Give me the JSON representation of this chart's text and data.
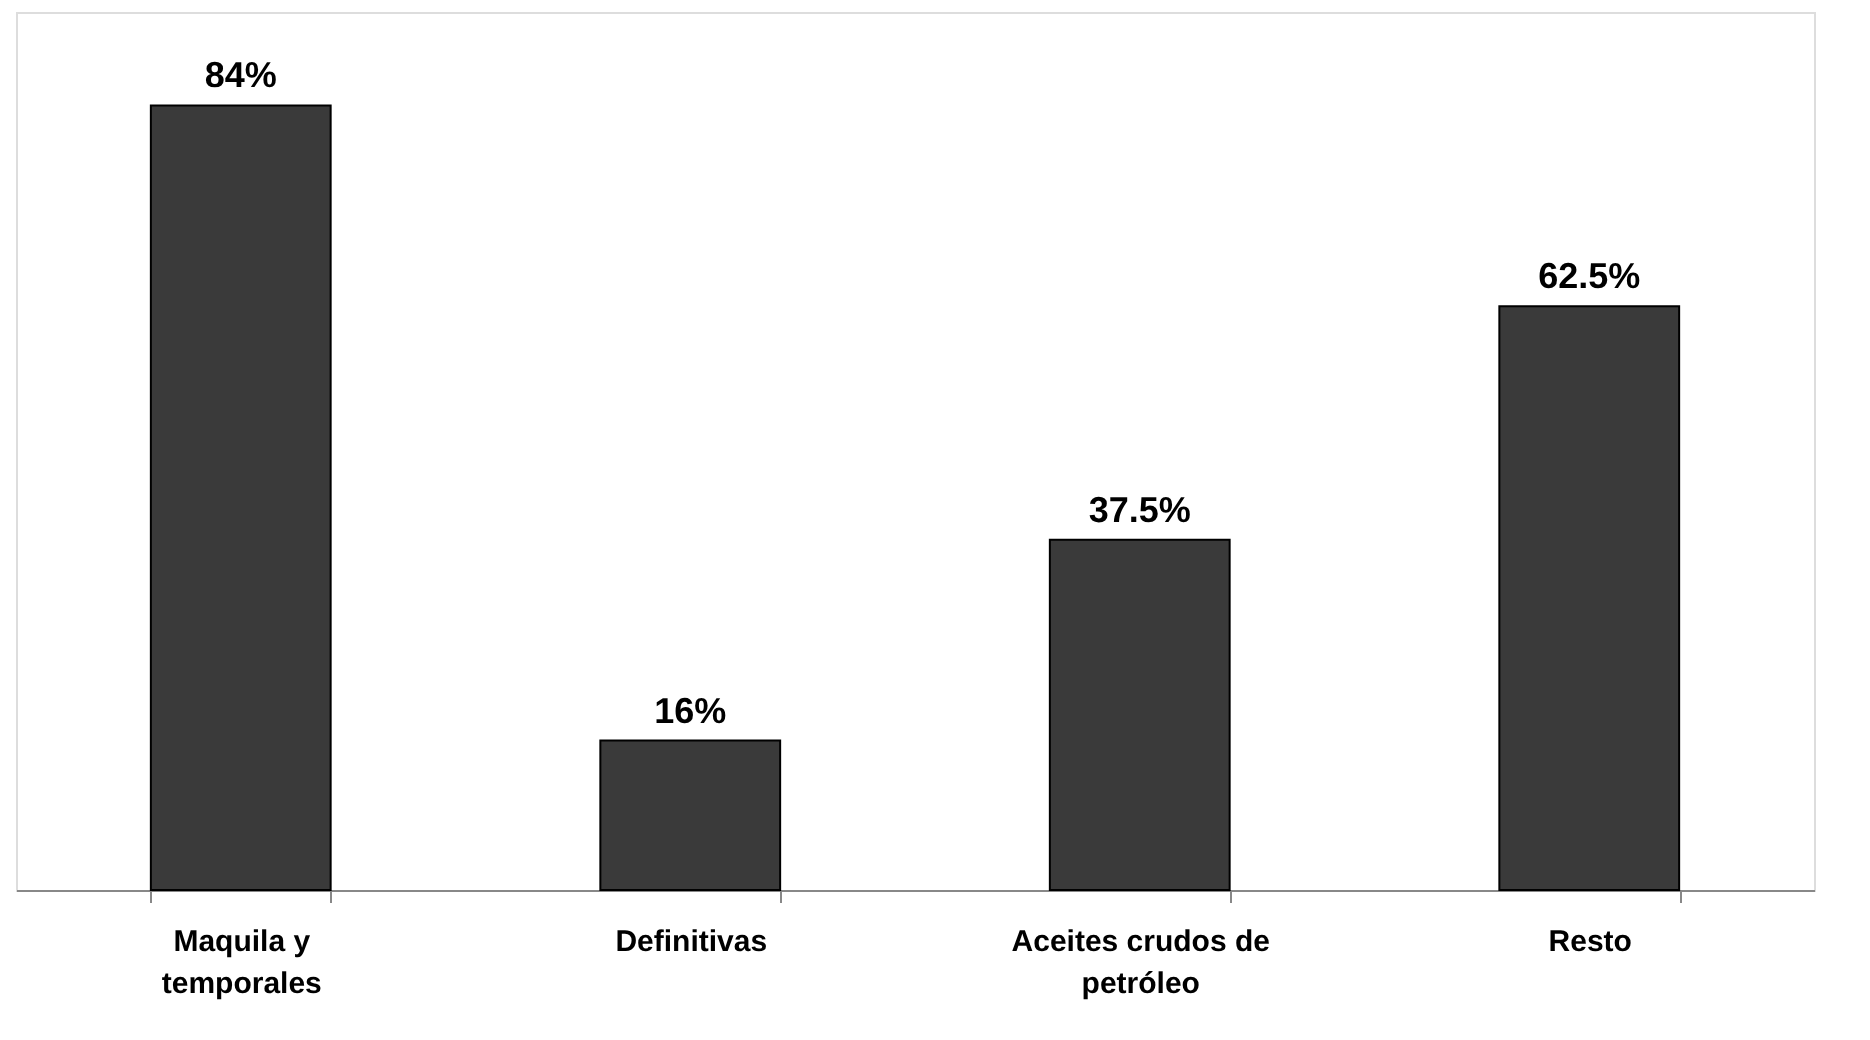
{
  "chart_data": {
    "type": "bar",
    "categories": [
      "Maquila y temporales",
      "Definitivas",
      "Aceites crudos de petróleo",
      "Resto"
    ],
    "values": [
      84,
      16,
      37.5,
      62.5
    ],
    "value_labels": [
      "84%",
      "16%",
      "37.5%",
      "62.5%"
    ],
    "color": "#3a3a3a",
    "ylim": [
      0,
      94
    ]
  }
}
